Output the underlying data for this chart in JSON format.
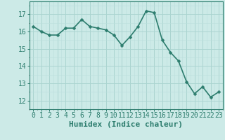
{
  "x": [
    0,
    1,
    2,
    3,
    4,
    5,
    6,
    7,
    8,
    9,
    10,
    11,
    12,
    13,
    14,
    15,
    16,
    17,
    18,
    19,
    20,
    21,
    22,
    23
  ],
  "y": [
    16.3,
    16.0,
    15.8,
    15.8,
    16.2,
    16.2,
    16.7,
    16.3,
    16.2,
    16.1,
    15.8,
    15.2,
    15.7,
    16.3,
    17.2,
    17.1,
    15.5,
    14.8,
    14.3,
    13.1,
    12.4,
    12.8,
    12.2,
    12.5
  ],
  "line_color": "#2d7d6e",
  "marker_color": "#2d7d6e",
  "bg_color": "#cceae7",
  "grid_color": "#aad4d0",
  "grid_minor_color": "#bbdedd",
  "xlabel": "Humidex (Indice chaleur)",
  "ylim": [
    11.5,
    17.75
  ],
  "xlim": [
    -0.5,
    23.5
  ],
  "yticks": [
    12,
    13,
    14,
    15,
    16,
    17
  ],
  "xticks": [
    0,
    1,
    2,
    3,
    4,
    5,
    6,
    7,
    8,
    9,
    10,
    11,
    12,
    13,
    14,
    15,
    16,
    17,
    18,
    19,
    20,
    21,
    22,
    23
  ],
  "tick_fontsize": 7,
  "xlabel_fontsize": 8,
  "line_width": 1.2,
  "marker_size": 2.5
}
